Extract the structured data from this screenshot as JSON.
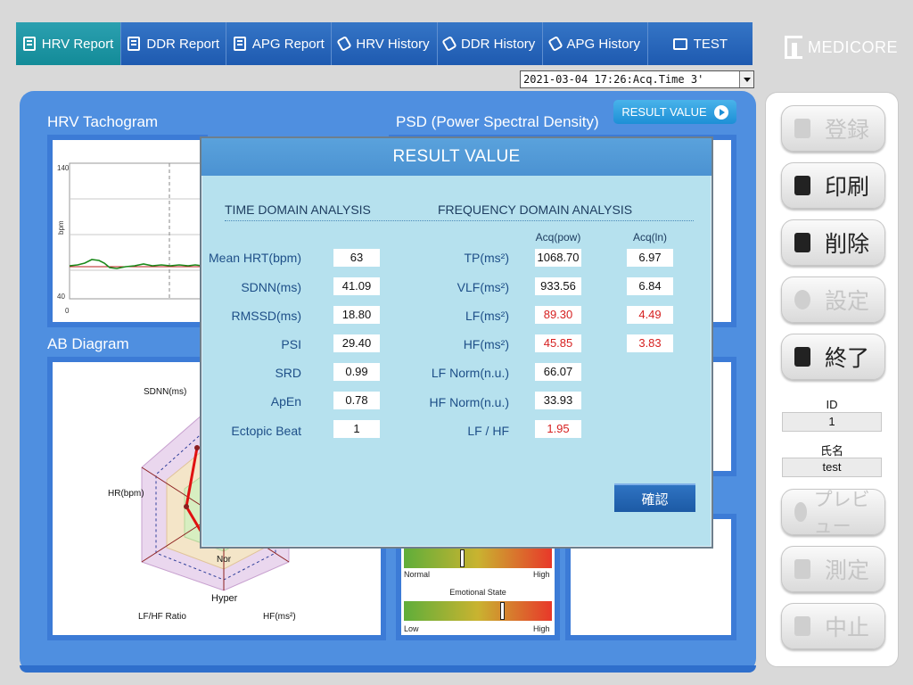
{
  "tabs": [
    {
      "label": "HRV Report",
      "icon": "document-icon",
      "active": true
    },
    {
      "label": "DDR Report",
      "icon": "document-icon",
      "active": false
    },
    {
      "label": "APG Report",
      "icon": "document-icon",
      "active": false
    },
    {
      "label": "HRV History",
      "icon": "history-icon",
      "active": false
    },
    {
      "label": "DDR History",
      "icon": "history-icon",
      "active": false
    },
    {
      "label": "APG History",
      "icon": "history-icon",
      "active": false
    },
    {
      "label": "TEST",
      "icon": "monitor-icon",
      "active": false
    }
  ],
  "logo": "MEDICORE",
  "acq_select": "2021-03-04 17:26:Acq.Time  3'",
  "sections": {
    "tachogram": "HRV Tachogram",
    "psd": "PSD (Power Spectral Density)",
    "ab": "AB Diagram"
  },
  "result_button": "RESULT VALUE",
  "tachogram": {
    "y_top": "140",
    "y_bottom": "40",
    "y_label": "bpm",
    "x_start": "0"
  },
  "ab_diagram": {
    "axes": [
      "SDNN(ms)",
      "HR(bpm)",
      "LF/HF Ratio",
      "HF(ms²)"
    ],
    "rings": [
      "Nor",
      "Hyper"
    ]
  },
  "gauges": [
    {
      "title": "",
      "low": "Normal",
      "high": "High",
      "level": 0.39
    },
    {
      "title": "Emotional State",
      "low": "Low",
      "high": "High",
      "level": 0.66
    }
  ],
  "side": {
    "buttons": [
      {
        "label": "登録",
        "enabled": false,
        "icon": "user-add-icon"
      },
      {
        "label": "印刷",
        "enabled": true,
        "icon": "printer-icon"
      },
      {
        "label": "削除",
        "enabled": true,
        "icon": "trash-icon"
      },
      {
        "label": "設定",
        "enabled": false,
        "icon": "gear-icon"
      },
      {
        "label": "終了",
        "enabled": true,
        "icon": "exit-icon"
      },
      {
        "label": "プレビュー",
        "enabled": false,
        "icon": "magnifier-icon"
      },
      {
        "label": "測定",
        "enabled": false,
        "icon": "play-icon"
      },
      {
        "label": "中止",
        "enabled": false,
        "icon": "stop-icon"
      }
    ],
    "id_label": "ID",
    "id_value": "1",
    "name_label": "氏名",
    "name_value": "test"
  },
  "modal": {
    "title": "RESULT VALUE",
    "time_header": "TIME DOMAIN ANALYSIS",
    "freq_header": "FREQUENCY DOMAIN ANALYSIS",
    "col_pow": "Acq(pow)",
    "col_ln": "Acq(ln)",
    "time_rows": [
      {
        "label": "Mean HRT(bpm)",
        "value": "63"
      },
      {
        "label": "SDNN(ms)",
        "value": "41.09"
      },
      {
        "label": "RMSSD(ms)",
        "value": "18.80"
      },
      {
        "label": "PSI",
        "value": "29.40"
      },
      {
        "label": "SRD",
        "value": "0.99"
      },
      {
        "label": "ApEn",
        "value": "0.78"
      },
      {
        "label": "Ectopic Beat",
        "value": "1"
      }
    ],
    "freq_rows": [
      {
        "label": "TP(ms²)",
        "pow": "1068.70",
        "ln": "6.97",
        "red": false
      },
      {
        "label": "VLF(ms²)",
        "pow": "933.56",
        "ln": "6.84",
        "red": false
      },
      {
        "label": "LF(ms²)",
        "pow": "89.30",
        "ln": "4.49",
        "red": true
      },
      {
        "label": "HF(ms²)",
        "pow": "45.85",
        "ln": "3.83",
        "red": true
      },
      {
        "label": "LF Norm(n.u.)",
        "pow": "66.07",
        "ln": "",
        "red": false
      },
      {
        "label": "HF Norm(n.u.)",
        "pow": "33.93",
        "ln": "",
        "red": false
      },
      {
        "label": "LF / HF",
        "pow": "1.95",
        "ln": "",
        "red": true
      }
    ],
    "confirm": "確認"
  }
}
